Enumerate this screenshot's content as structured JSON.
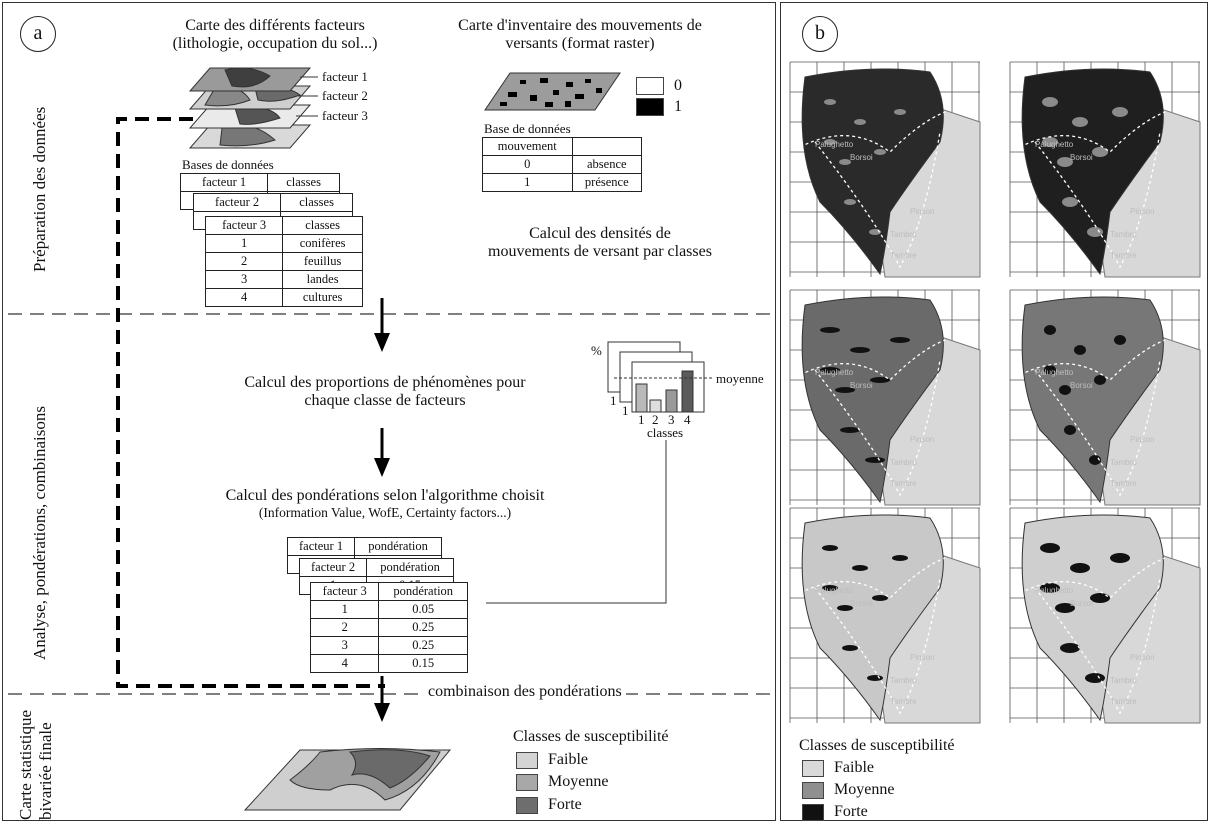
{
  "panel_a": {
    "letter": "a",
    "section_labels": {
      "prep": "Préparation des données",
      "analysis": "Analyse, pondérations, combinaisons",
      "final_line1": "Carte statistique",
      "final_line2": "bivariée finale"
    },
    "factors_map": {
      "title_line1": "Carte des différents facteurs",
      "title_line2": "(lithologie, occupation du sol...)",
      "layers": [
        "facteur 1",
        "facteur 2",
        "facteur 3"
      ]
    },
    "factor_db": {
      "title": "Bases de données",
      "table1": {
        "header": [
          "facteur 1",
          "classes"
        ]
      },
      "table2": {
        "header": [
          "facteur 2",
          "classes"
        ]
      },
      "table3": {
        "header": [
          "facteur 3",
          "classes"
        ],
        "rows": [
          [
            "1",
            "conifères"
          ],
          [
            "2",
            "feuillus"
          ],
          [
            "3",
            "landes"
          ],
          [
            "4",
            "cultures"
          ]
        ]
      }
    },
    "inventory": {
      "title_line1": "Carte d'inventaire des mouvements de",
      "title_line2": "versants (format raster)",
      "legend": [
        {
          "value": "0",
          "color": "#ffffff"
        },
        {
          "value": "1",
          "color": "#000000"
        }
      ],
      "db_title": "Base de données",
      "table": {
        "header": [
          "mouvement",
          ""
        ],
        "rows": [
          [
            "0",
            "absence"
          ],
          [
            "1",
            "présence"
          ]
        ]
      }
    },
    "density_text_line1": "Calcul des densités de",
    "density_text_line2": "mouvements de versant par classes",
    "proportion_text_line1": "Calcul des proportions de phénomènes pour",
    "proportion_text_line2": "chaque classe de facteurs",
    "mini_chart": {
      "y_label": "%",
      "mean_label": "moyenne",
      "x_label": "classes",
      "categories": [
        "1",
        "2",
        "3",
        "4"
      ],
      "back_labels": [
        "1",
        "1"
      ]
    },
    "weights": {
      "title": "Calcul des pondérations selon l'algorithme choisit",
      "subtitle": "(Information Value, WofE, Certainty factors...)",
      "table1": {
        "header": [
          "facteur 1",
          "pondération"
        ]
      },
      "table2": {
        "header": [
          "facteur 2",
          "pondération"
        ],
        "peek": [
          "1",
          "0.15"
        ]
      },
      "table3": {
        "header": [
          "facteur 3",
          "pondération"
        ],
        "rows": [
          [
            "1",
            "0.05"
          ],
          [
            "2",
            "0.25"
          ],
          [
            "3",
            "0.25"
          ],
          [
            "4",
            "0.15"
          ]
        ]
      }
    },
    "combination_text": "combinaison des pondérations",
    "susceptibility_legend": {
      "title": "Classes de susceptibilité",
      "items": [
        {
          "label": "Faible",
          "color": "#d4d4d4"
        },
        {
          "label": "Moyenne",
          "color": "#a8a8a8"
        },
        {
          "label": "Forte",
          "color": "#6e6e6e"
        }
      ]
    }
  },
  "panel_b": {
    "letter": "b",
    "place_labels": [
      "Palughetto",
      "Borsoi",
      "Pinson",
      "Tambro",
      "Tambre"
    ],
    "legend": {
      "title": "Classes de susceptibilité",
      "items": [
        {
          "label": "Faible",
          "color": "#d9d9d9"
        },
        {
          "label": "Moyenne",
          "color": "#8f8f8f"
        },
        {
          "label": "Forte",
          "color": "#111111"
        }
      ]
    }
  }
}
